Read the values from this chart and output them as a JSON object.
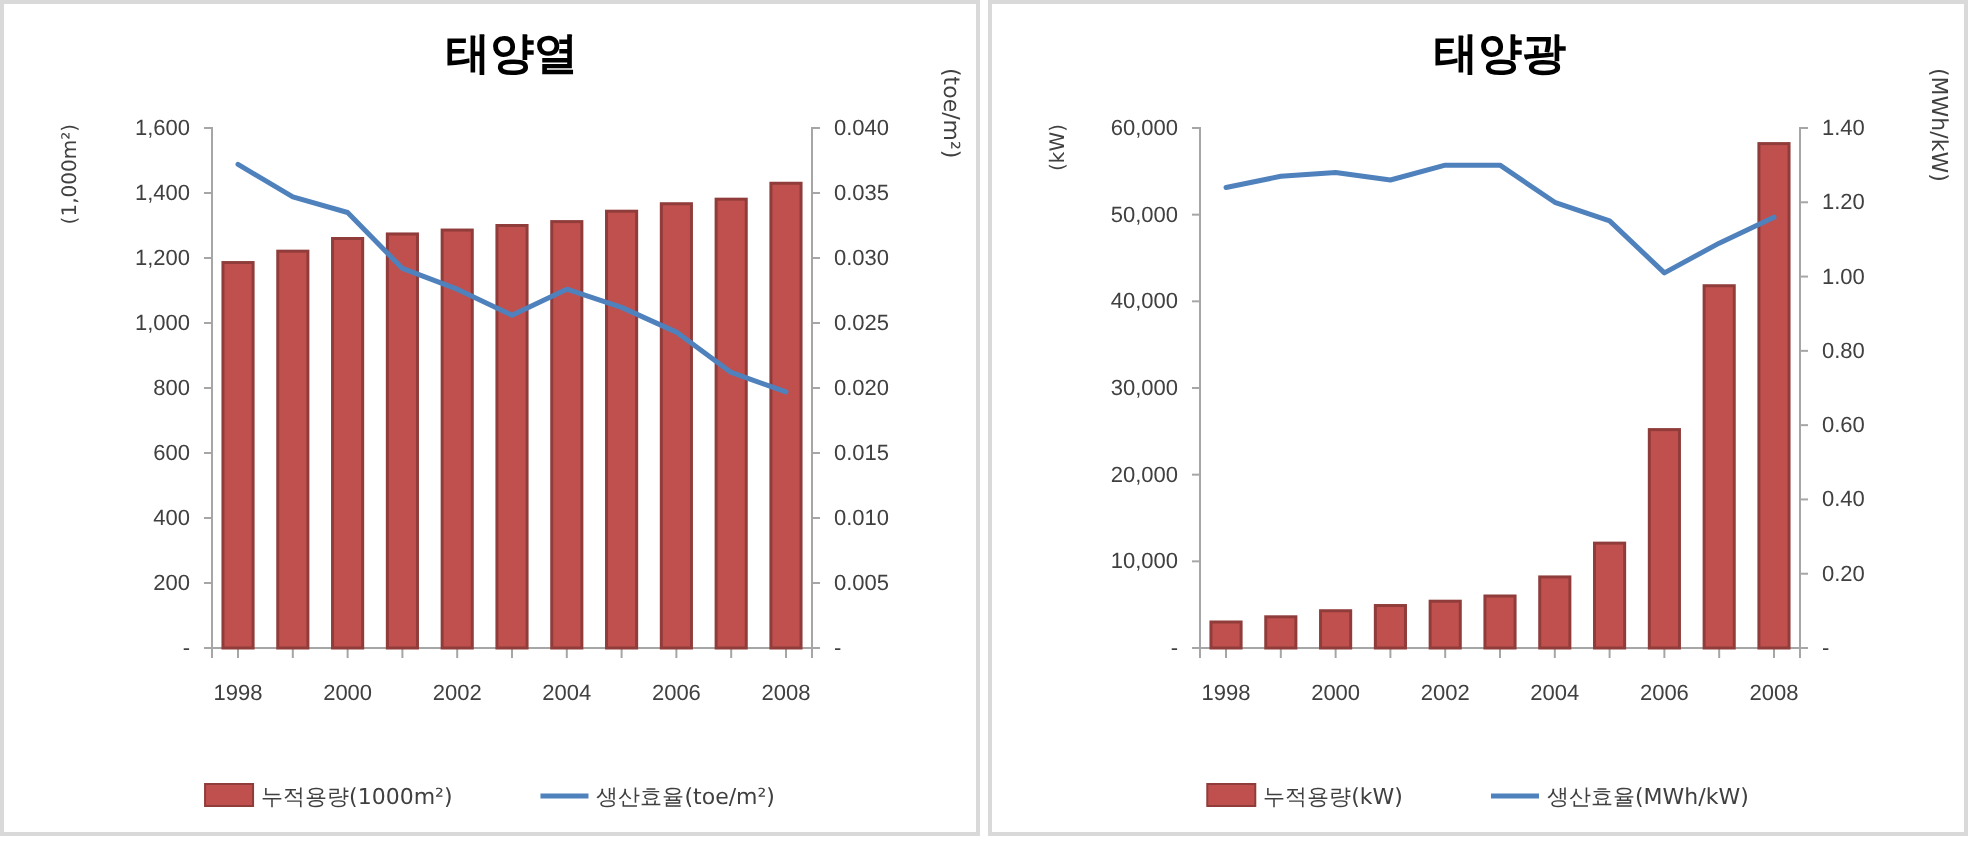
{
  "chart_data": [
    {
      "type": "bar",
      "title": "태양열",
      "ylabel": "(1,000m²)",
      "y2label": "(toe/m²)",
      "categories": [
        "1998",
        null,
        "2000",
        null,
        "2002",
        null,
        "2004",
        null,
        "2006",
        null,
        "2008"
      ],
      "series": [
        {
          "name": "누적용량(1000m²)",
          "color": "#c0504d",
          "values": [
            1186,
            1221,
            1260,
            1274,
            1286,
            1300,
            1312,
            1344,
            1367,
            1381,
            1430
          ]
        },
        {
          "name": "생산효율(toe/m²)",
          "type": "line",
          "axis": "y2",
          "color": "#4f81bd",
          "values": [
            0.0372,
            0.0347,
            0.0335,
            0.0292,
            0.0276,
            0.0256,
            0.0276,
            0.0262,
            0.0243,
            0.0212,
            0.0197
          ]
        }
      ],
      "ylim": [
        0,
        1600
      ],
      "yticks": [
        {
          "value": 0,
          "label": "-"
        },
        200,
        400,
        600,
        800,
        {
          "value": 1000,
          "label": "1,000"
        },
        {
          "value": 1200,
          "label": "1,200"
        },
        {
          "value": 1400,
          "label": "1,400"
        },
        {
          "value": 1600,
          "label": "1,600"
        }
      ],
      "y2lim": [
        0,
        0.04
      ],
      "y2ticks": [
        {
          "value": 0,
          "label": "-"
        },
        {
          "value": 0.005,
          "label": "0.005"
        },
        {
          "value": 0.01,
          "label": "0.010"
        },
        {
          "value": 0.015,
          "label": "0.015"
        },
        {
          "value": 0.02,
          "label": "0.020"
        },
        {
          "value": 0.025,
          "label": "0.025"
        },
        {
          "value": 0.03,
          "label": "0.030"
        },
        {
          "value": 0.035,
          "label": "0.035"
        },
        {
          "value": 0.04,
          "label": "0.040"
        }
      ],
      "grid": false,
      "legend": "bottom",
      "marker": "none"
    },
    {
      "type": "bar",
      "title": "태양광",
      "ylabel": "(kW)",
      "y2label": "(MWh/kW)",
      "categories": [
        "1998",
        null,
        "2000",
        null,
        "2002",
        null,
        "2004",
        null,
        "2006",
        null,
        "2008"
      ],
      "series": [
        {
          "name": "누적용량(kW)",
          "color": "#c0504d",
          "values": [
            3000,
            3600,
            4300,
            4900,
            5400,
            6000,
            8200,
            12100,
            25200,
            41800,
            58200
          ]
        },
        {
          "name": "생산효율(MWh/kW)",
          "type": "line",
          "axis": "y2",
          "color": "#4f81bd",
          "values": [
            1.24,
            1.27,
            1.28,
            1.26,
            1.3,
            1.3,
            1.2,
            1.15,
            1.01,
            1.09,
            1.16
          ]
        }
      ],
      "ylim": [
        0,
        60000
      ],
      "yticks": [
        {
          "value": 0,
          "label": "-"
        },
        {
          "value": 10000,
          "label": "10,000"
        },
        {
          "value": 20000,
          "label": "20,000"
        },
        {
          "value": 30000,
          "label": "30,000"
        },
        {
          "value": 40000,
          "label": "40,000"
        },
        {
          "value": 50000,
          "label": "50,000"
        },
        {
          "value": 60000,
          "label": "60,000"
        }
      ],
      "y2lim": [
        0,
        1.4
      ],
      "y2ticks": [
        {
          "value": 0,
          "label": "-"
        },
        {
          "value": 0.2,
          "label": "0.20"
        },
        {
          "value": 0.4,
          "label": "0.40"
        },
        {
          "value": 0.6,
          "label": "0.60"
        },
        {
          "value": 0.8,
          "label": "0.80"
        },
        {
          "value": 1.0,
          "label": "1.00"
        },
        {
          "value": 1.2,
          "label": "1.20"
        },
        {
          "value": 1.4,
          "label": "1.40"
        }
      ],
      "grid": false,
      "legend": "bottom",
      "marker": "none"
    }
  ]
}
